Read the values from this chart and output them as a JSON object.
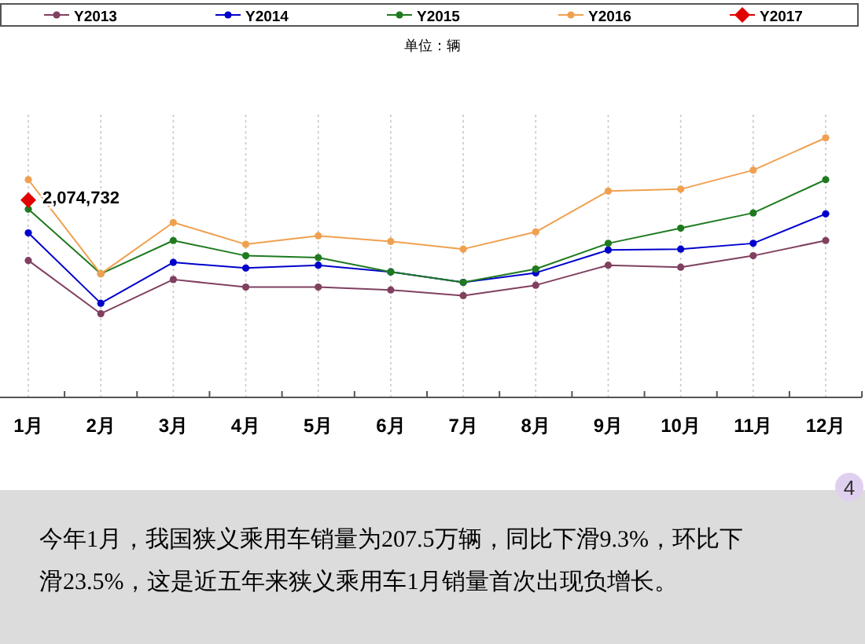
{
  "chart_data": {
    "type": "line",
    "subtitle": "单位：辆",
    "categories": [
      "1月",
      "2月",
      "3月",
      "4月",
      "5月",
      "6月",
      "7月",
      "8月",
      "9月",
      "10月",
      "11月",
      "12月"
    ],
    "ylim": [
      0,
      3000000
    ],
    "tick_labels": "x",
    "grid": "x",
    "legend": "top",
    "marker": "circle",
    "series": [
      {
        "name": "Y2013",
        "color": "#804060",
        "values": [
          1440000,
          880000,
          1240000,
          1160000,
          1160000,
          1130000,
          1070000,
          1180000,
          1390000,
          1370000,
          1490000,
          1650000
        ]
      },
      {
        "name": "Y2014",
        "color": "#0000cc",
        "values": [
          1730000,
          990000,
          1420000,
          1360000,
          1390000,
          1320000,
          1210000,
          1310000,
          1550000,
          1560000,
          1620000,
          1930000
        ]
      },
      {
        "name": "Y2015",
        "color": "#1f7a1f",
        "values": [
          1980000,
          1300000,
          1650000,
          1490000,
          1470000,
          1320000,
          1210000,
          1350000,
          1620000,
          1780000,
          1940000,
          2290000
        ]
      },
      {
        "name": "Y2016",
        "color": "#f0a050",
        "values": [
          2290000,
          1300000,
          1840000,
          1610000,
          1700000,
          1640000,
          1560000,
          1740000,
          2170000,
          2190000,
          2390000,
          2730000
        ]
      },
      {
        "name": "Y2017",
        "color": "#e00000",
        "marker": "diamond",
        "values": [
          2074732,
          null,
          null,
          null,
          null,
          null,
          null,
          null,
          null,
          null,
          null,
          null
        ],
        "value_labels": [
          "2,074,732",
          null,
          null,
          null,
          null,
          null,
          null,
          null,
          null,
          null,
          null,
          null
        ]
      }
    ],
    "annotations": [
      "今年1月，我国狭义乘用车销量为207.5万辆，同比下滑9.3%，环比下滑23.5%，这是近五年来狭义乘用车1月销量首次出现负增长。",
      "4"
    ]
  }
}
